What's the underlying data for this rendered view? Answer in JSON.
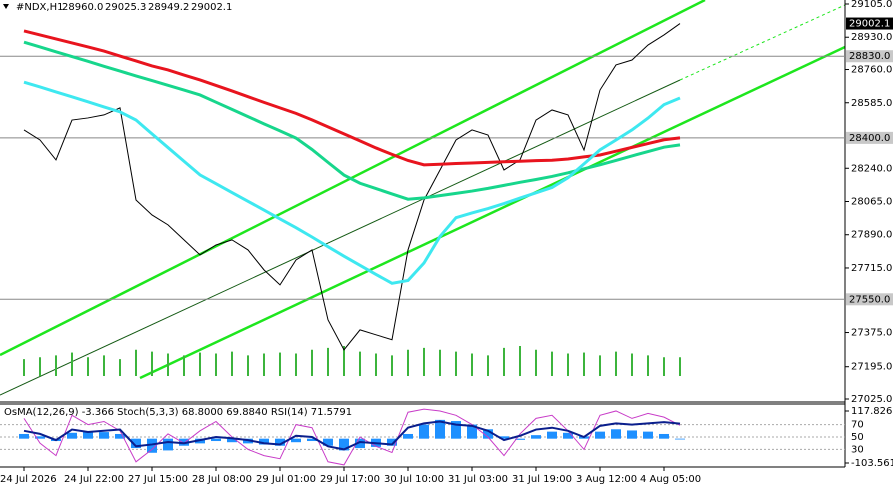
{
  "chart_data": [
    {
      "type": "line",
      "title": "#NDX,H1",
      "header_values": [
        {
          "value": 28960,
          "label": "28960.0"
        },
        {
          "value": 29025.3,
          "label": "29025.3"
        },
        {
          "value": 28949.2,
          "label": "28949.2"
        },
        {
          "value": 29002.1,
          "label": "29002.1"
        }
      ],
      "categories": [
        "24 Jul 2026",
        null,
        null,
        null,
        "24 Jul 22:00",
        null,
        null,
        null,
        "27 Jul 15:00",
        null,
        null,
        null,
        "28 Jul 08:00",
        null,
        null,
        null,
        "29 Jul 01:00",
        null,
        null,
        null,
        "29 Jul 17:00",
        null,
        null,
        null,
        "30 Jul 10:00",
        null,
        null,
        null,
        "31 Jul 03:00",
        null,
        null,
        null,
        "31 Jul 19:00",
        null,
        null,
        null,
        "3 Aug 12:00",
        null,
        null,
        null,
        "4 Aug 05:00",
        null
      ],
      "series": [
        {
          "color": "#000000",
          "values": [
            28442,
            28389,
            28284,
            28494,
            28505,
            28521,
            28558,
            28073,
            27994,
            27942,
            27863,
            27784,
            27836,
            27863,
            27810,
            27705,
            27626,
            27757,
            27810,
            27442,
            27284,
            27389,
            27363,
            27337,
            27810,
            28073,
            28231,
            28389,
            28442,
            28415,
            28231,
            28284,
            28494,
            28547,
            28521,
            28336,
            28652,
            28784,
            28810,
            28889,
            28942,
            29002.1
          ]
        },
        {
          "color": "#e8141e",
          "values": [
            28963,
            28942,
            28921,
            28900,
            28879,
            28857,
            28831,
            28805,
            28779,
            28758,
            28731,
            28705,
            28676,
            28647,
            28617,
            28587,
            28558,
            28529,
            28495,
            28458,
            28421,
            28384,
            28347,
            28313,
            28281,
            28258,
            28261,
            28265,
            28268,
            28271,
            28274,
            28277,
            28280,
            28282,
            28289,
            28300,
            28310,
            28330,
            28350,
            28370,
            28390,
            28400
          ]
        },
        {
          "color": "#17d68c",
          "values": [
            28904,
            28879,
            28853,
            28828,
            28803,
            28777,
            28752,
            28726,
            28702,
            28677,
            28652,
            28626,
            28588,
            28550,
            28512,
            28474,
            28437,
            28399,
            28339,
            28271,
            28204,
            28161,
            28133,
            28105,
            28077,
            28084,
            28096,
            28108,
            28120,
            28134,
            28150,
            28166,
            28181,
            28197,
            28216,
            28237,
            28258,
            28281,
            28305,
            28328,
            28351,
            28363
          ]
        },
        {
          "color": "#3ee8f0",
          "values": [
            28693,
            28668,
            28642,
            28616,
            28590,
            28563,
            28537,
            28494,
            28421,
            28349,
            28277,
            28205,
            28159,
            28112,
            28066,
            28020,
            27973,
            27927,
            27878,
            27827,
            27777,
            27729,
            27681,
            27634,
            27649,
            27741,
            27881,
            27980,
            28005,
            28028,
            28054,
            28083,
            28111,
            28139,
            28190,
            28263,
            28337,
            28389,
            28442,
            28504,
            28575,
            28610
          ]
        }
      ],
      "volume": [
        18,
        20,
        22,
        25,
        20,
        22,
        18,
        28,
        26,
        24,
        22,
        25,
        24,
        26,
        22,
        24,
        25,
        24,
        28,
        30,
        32,
        26,
        24,
        22,
        28,
        30,
        28,
        26,
        24,
        22,
        30,
        32,
        28,
        26,
        24,
        25,
        22,
        26,
        24,
        22,
        20,
        20
      ],
      "volume_color": "#3cb43c",
      "ylim": [
        27025,
        29105
      ],
      "yticks": [
        {
          "value": 29105,
          "label": "29105.0"
        },
        {
          "value": 28930,
          "label": "28930.0"
        },
        {
          "value": 28760,
          "label": "28760.0"
        },
        {
          "value": 28585,
          "label": "28585.0"
        },
        {
          "value": 28240,
          "label": "28240.0"
        },
        {
          "value": 28065,
          "label": "28065.0"
        },
        {
          "value": 27890,
          "label": "27890.0"
        },
        {
          "value": 27715,
          "label": "27715.0"
        },
        {
          "value": 27375,
          "label": "27375.0"
        },
        {
          "value": 27195,
          "label": "27195.0"
        },
        {
          "value": 27025,
          "label": "27025.0"
        }
      ],
      "levels": [
        {
          "value": 28830,
          "label": "28830.0"
        },
        {
          "value": 28400,
          "label": "28400.0"
        },
        {
          "value": 27550,
          "label": "27550.0"
        }
      ],
      "last_price": {
        "value": 29002.1,
        "label": "29002.1"
      }
    },
    {
      "type": "oscillator",
      "title": "OsMA(12,26,9) -3.366  Stoch(5,3,3) 68.8000 69.8840  RSI(14) 71.5791",
      "series": [
        {
          "color": "#1e90ff",
          "axis": "y2",
          "values": [
            20,
            10,
            -10,
            25,
            30,
            28,
            20,
            -40,
            -60,
            -50,
            -30,
            -20,
            -10,
            -15,
            -20,
            -25,
            -30,
            -15,
            -10,
            -30,
            -50,
            -40,
            -35,
            -30,
            20,
            60,
            80,
            75,
            60,
            40,
            10,
            -5,
            15,
            30,
            25,
            10,
            30,
            40,
            35,
            30,
            20,
            -3.366
          ]
        },
        {
          "color": "#c83cc8",
          "values": [
            80,
            40,
            20,
            85,
            70,
            75,
            60,
            10,
            30,
            55,
            40,
            60,
            75,
            50,
            30,
            20,
            15,
            70,
            65,
            10,
            5,
            50,
            35,
            25,
            90,
            95,
            92,
            85,
            70,
            50,
            20,
            55,
            80,
            85,
            60,
            30,
            85,
            92,
            80,
            88,
            82,
            68.8
          ]
        },
        {
          "color": "#0a1e8c",
          "values": [
            60,
            55,
            45,
            62,
            58,
            60,
            62,
            35,
            38,
            42,
            40,
            45,
            50,
            48,
            45,
            40,
            38,
            52,
            50,
            35,
            30,
            42,
            40,
            38,
            65,
            72,
            75,
            70,
            68,
            60,
            45,
            52,
            62,
            65,
            60,
            50,
            68,
            72,
            70,
            72,
            74,
            71.5791
          ]
        }
      ],
      "ylim": [
        0,
        100
      ],
      "yticks": [
        30,
        50,
        70
      ],
      "y2lim": [
        -103.561,
        117.826
      ],
      "y2ticks": [
        -103.561,
        117.826
      ]
    }
  ]
}
